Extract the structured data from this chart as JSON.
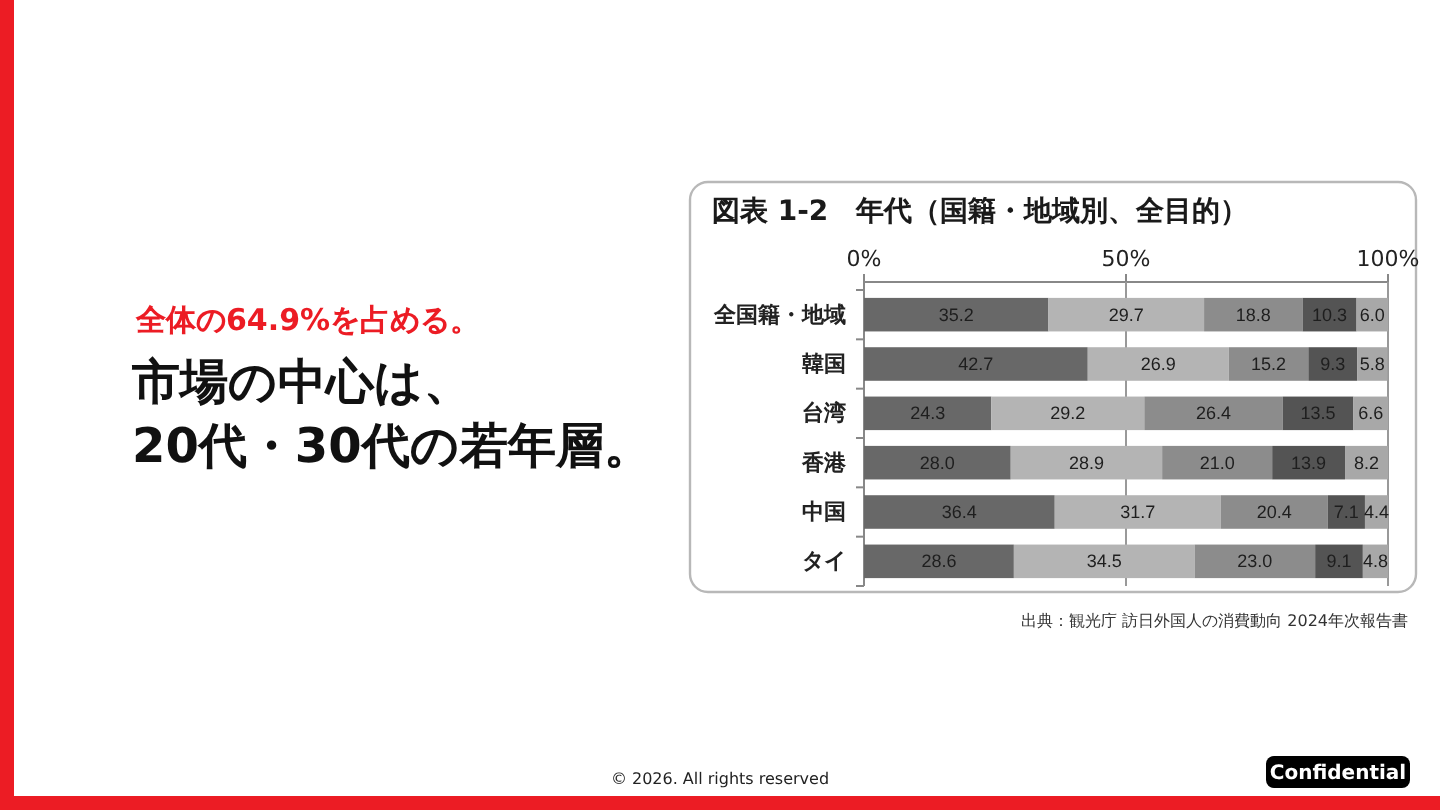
{
  "chart_data": {
    "type": "bar",
    "orientation": "horizontal",
    "stacked": true,
    "title": "図表 1-2　年代（国籍・地域別、全目的）",
    "categories": [
      "全国籍・地域",
      "韓国",
      "台湾",
      "香港",
      "中国",
      "タイ"
    ],
    "series": [
      {
        "color": "#686868",
        "values": [
          35.2,
          42.7,
          24.3,
          28.0,
          36.4,
          28.6
        ],
        "value_labels": [
          "35.2",
          "42.7",
          "24.3",
          "28.0",
          "36.4",
          "28.6"
        ]
      },
      {
        "color": "#b4b4b4",
        "values": [
          29.7,
          26.9,
          29.2,
          28.9,
          31.7,
          34.5
        ],
        "value_labels": [
          "29.7",
          "26.9",
          "29.2",
          "28.9",
          "31.7",
          "34.5"
        ]
      },
      {
        "color": "#8c8c8c",
        "values": [
          18.8,
          15.2,
          26.4,
          21.0,
          20.4,
          23.0
        ],
        "value_labels": [
          "18.8",
          "15.2",
          "26.4",
          "21.0",
          "20.4",
          "23.0"
        ]
      },
      {
        "color": "#545454",
        "values": [
          10.3,
          9.3,
          13.5,
          13.9,
          7.1,
          9.1
        ],
        "value_labels": [
          "10.3",
          "9.3",
          "13.5",
          "13.9",
          "7.1",
          "9.1"
        ]
      },
      {
        "color": "#a8a8a8",
        "values": [
          6.0,
          5.8,
          6.6,
          8.2,
          4.4,
          4.8
        ],
        "value_labels": [
          "6.0",
          "5.8",
          "6.6",
          "8.2",
          "4.4",
          "4.8"
        ]
      }
    ],
    "xlim": [
      0,
      100
    ],
    "xticks": [
      {
        "value": 0,
        "label": "0%"
      },
      {
        "value": 50,
        "label": "50%"
      },
      {
        "value": 100,
        "label": "100%"
      }
    ],
    "grid": "x",
    "annotations": [
      "全体の64.9%を占める。",
      "市場の中心は、",
      "20代・30代の若年層。",
      "出典：観光庁 訪日外国人の消費動向 2024年次報告書",
      "© 2026. All rights reserved",
      "Confidential"
    ]
  }
}
